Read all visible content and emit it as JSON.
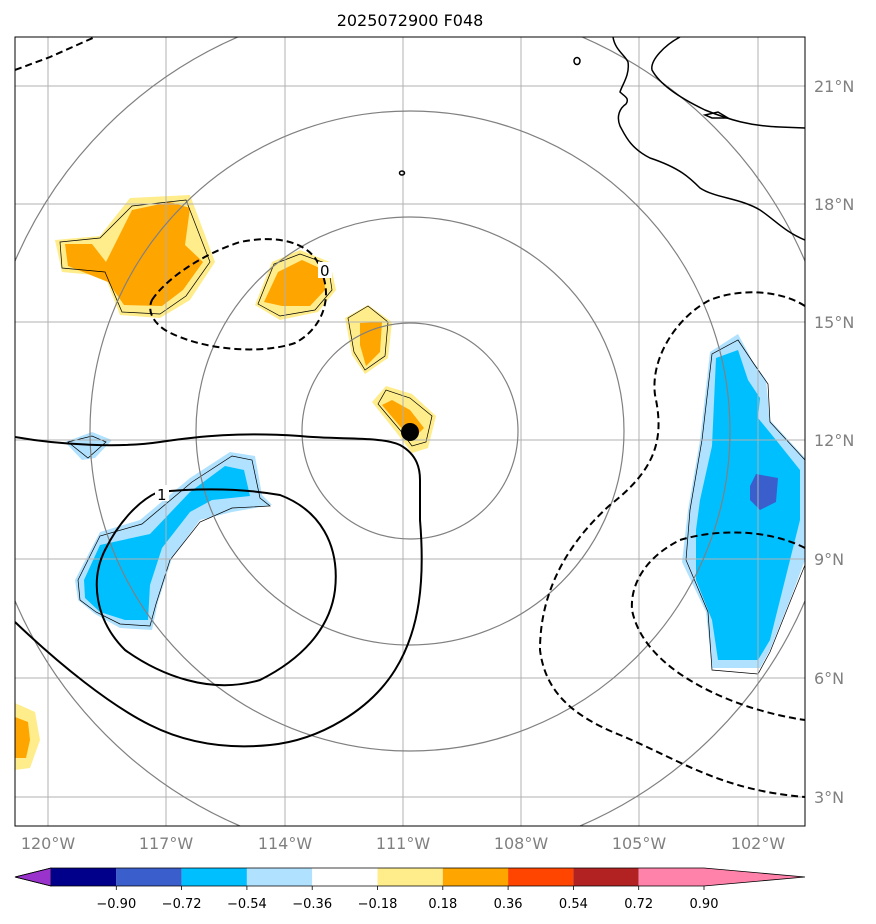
{
  "title": "2025072900 F048",
  "lat_labels": [
    "21°N",
    "18°N",
    "15°N",
    "12°N",
    "9°N",
    "6°N",
    "3°N"
  ],
  "lon_labels": [
    "120°W",
    "117°W",
    "114°W",
    "111°W",
    "108°W",
    "105°W",
    "102°W"
  ],
  "contour_labels": [
    "0",
    "1"
  ],
  "colorbar": {
    "ticks": [
      "−0.90",
      "−0.72",
      "−0.54",
      "−0.36",
      "−0.18",
      "0.18",
      "0.36",
      "0.54",
      "0.72",
      "0.90"
    ],
    "colors": [
      "#9933cc",
      "#00008b",
      "#3a5fcd",
      "#00bfff",
      "#b0e2ff",
      "#ffffff",
      "#ffec8b",
      "#ffa500",
      "#ff4500",
      "#b22222",
      "#ff82ab"
    ]
  },
  "center_marker": {
    "lat": 12.2,
    "lon": -110.8
  }
}
